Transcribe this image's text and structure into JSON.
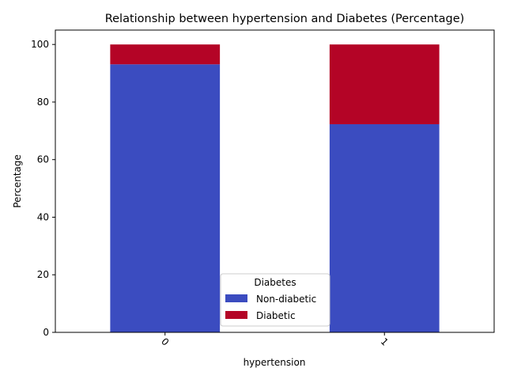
{
  "chart_data": {
    "type": "bar",
    "stacked": true,
    "title": "Relationship between hypertension and Diabetes (Percentage)",
    "xlabel": "hypertension",
    "ylabel": "Percentage",
    "categories": [
      "0",
      "1"
    ],
    "series": [
      {
        "name": "Non-diabetic",
        "color": "#3b4cc0",
        "values": [
          93.1,
          72.3
        ]
      },
      {
        "name": "Diabetic",
        "color": "#b40426",
        "values": [
          6.9,
          27.7
        ]
      }
    ],
    "ylim": [
      0,
      105
    ],
    "yticks": [
      0,
      20,
      40,
      60,
      80,
      100
    ],
    "grid": false,
    "legend": {
      "title": "Diabetes",
      "placement": "bottom-center"
    }
  }
}
